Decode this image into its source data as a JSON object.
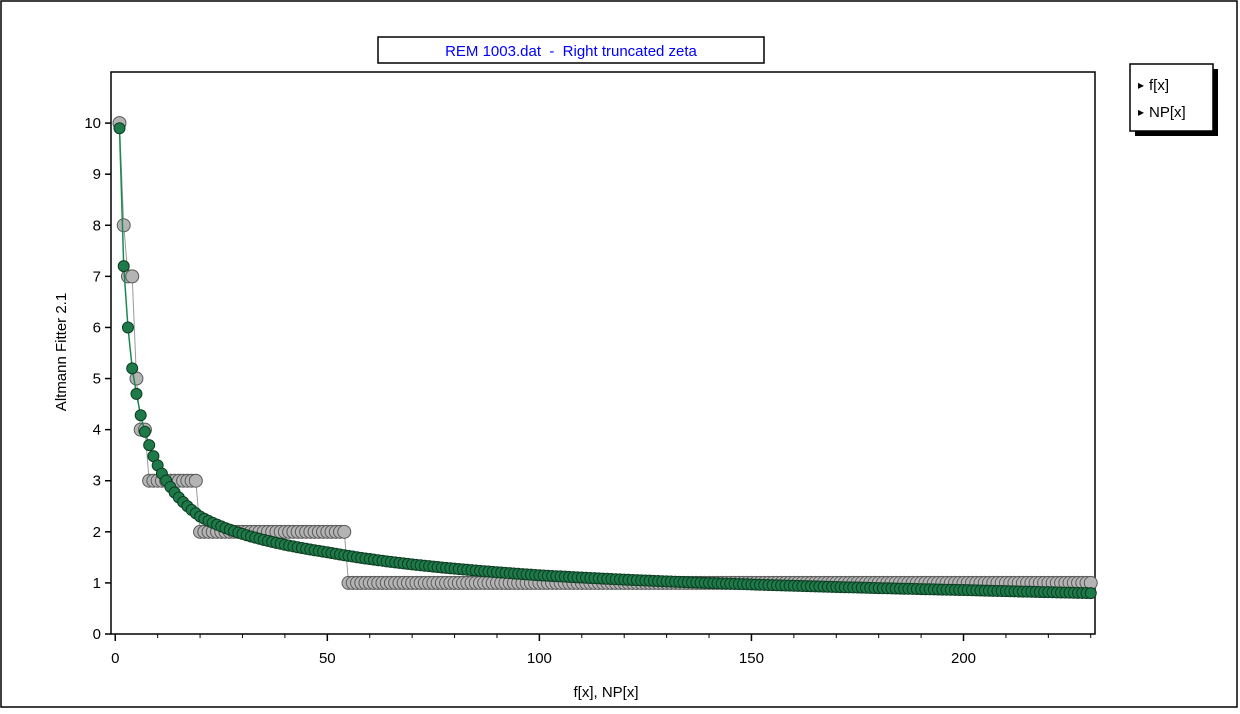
{
  "colors": {
    "observed": "#b4b4b4",
    "observed_stroke": "#5a5a5a",
    "fitted": "#1f7a4a",
    "fitted_stroke": "#0d3d22",
    "fitted_line": "#1a8a50",
    "title_text": "#0000ff",
    "frame": "#000000"
  },
  "legend": {
    "entries": [
      "f[x]",
      "NP[x]"
    ]
  },
  "chart_data": {
    "type": "scatter",
    "title": "REM 1003.dat  -  Right truncated zeta",
    "xlabel": "f[x], NP[x]",
    "ylabel": "Altmann Fitter 2.1",
    "xlim": [
      -1,
      231
    ],
    "ylim": [
      0,
      11
    ],
    "xticks": [
      0,
      50,
      100,
      150,
      200
    ],
    "yticks": [
      0,
      1,
      2,
      3,
      4,
      5,
      6,
      7,
      8,
      9,
      10
    ],
    "grid": false,
    "legend_position": "top-right, outside plot area",
    "series": [
      {
        "name": "f[x]",
        "marker": "circle",
        "segments": [
          {
            "x_from": 1,
            "x_to": 1,
            "y": 10
          },
          {
            "x_from": 2,
            "x_to": 2,
            "y": 8
          },
          {
            "x_from": 3,
            "x_to": 3,
            "y": 7
          },
          {
            "x_from": 4,
            "x_to": 4,
            "y": 7
          },
          {
            "x_from": 5,
            "x_to": 5,
            "y": 5
          },
          {
            "x_from": 6,
            "x_to": 7,
            "y": 4
          },
          {
            "x_from": 8,
            "x_to": 19,
            "y": 3
          },
          {
            "x_from": 20,
            "x_to": 54,
            "y": 2
          },
          {
            "x_from": 55,
            "x_to": 230,
            "y": 1
          }
        ]
      },
      {
        "name": "NP[x]",
        "marker": "circle",
        "model": "right truncated zeta",
        "x_range": [
          1,
          230
        ],
        "values_at": {
          "1": 9.9,
          "2": 7.2,
          "3": 6.0,
          "4": 5.2,
          "5": 4.7,
          "10": 3.3,
          "20": 2.3,
          "50": 1.6,
          "100": 1.15,
          "150": 0.97,
          "200": 0.86,
          "230": 0.8
        }
      }
    ]
  }
}
